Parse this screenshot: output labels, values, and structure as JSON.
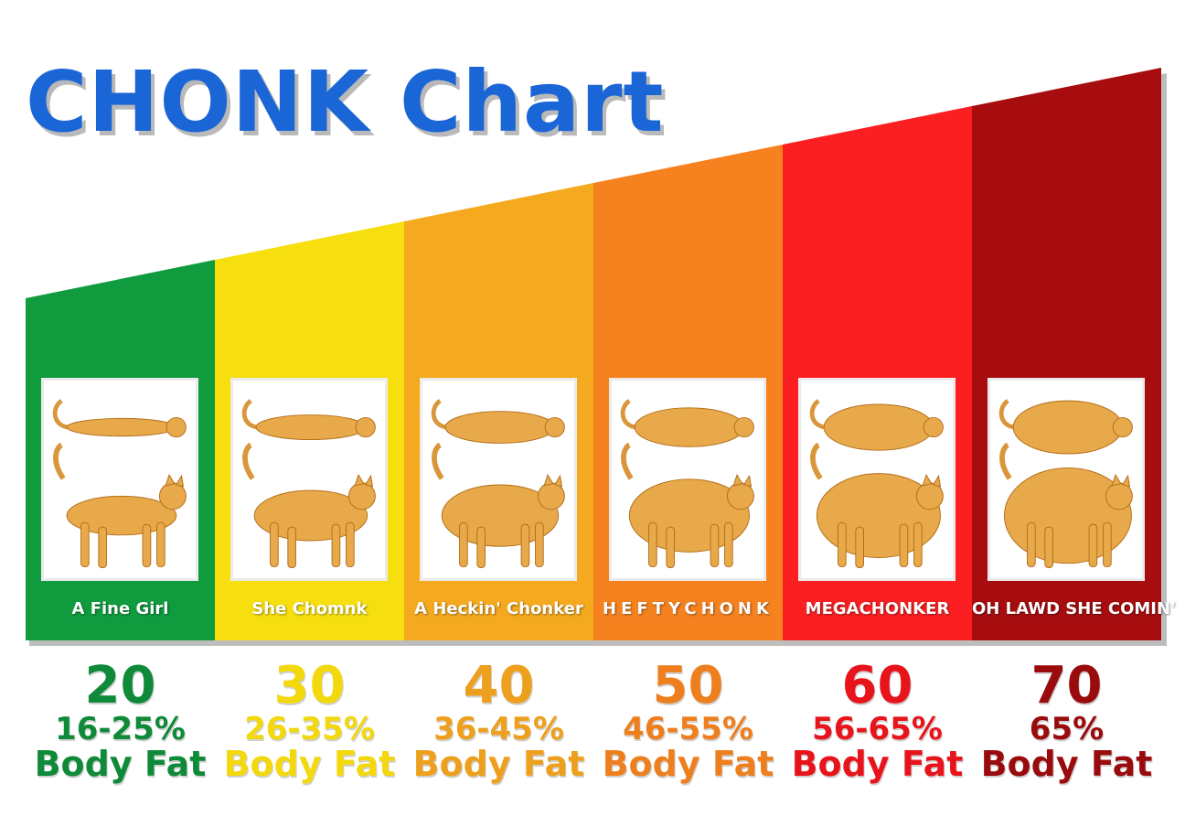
{
  "title": "CHONK Chart",
  "title_color": "#1a66d6",
  "categories": [
    {
      "label": "A Fine Girl",
      "score": "20",
      "range": "16-25%",
      "unit": "Body Fat",
      "color": "#0f9b3e",
      "text_color": "#0f8a38"
    },
    {
      "label": "She Chomnk",
      "score": "30",
      "range": "26-35%",
      "unit": "Body Fat",
      "color": "#f7df0f",
      "text_color": "#f2d80c"
    },
    {
      "label": "A Heckin' Chonker",
      "score": "40",
      "range": "36-45%",
      "unit": "Body Fat",
      "color": "#f5a91f",
      "text_color": "#eda01d"
    },
    {
      "label": "HEFTYCHONK",
      "score": "50",
      "range": "46-55%",
      "unit": "Body Fat",
      "color": "#f5821f",
      "text_color": "#ee7f1e"
    },
    {
      "label": "MEGACHONKER",
      "score": "60",
      "range": "56-65%",
      "unit": "Body Fat",
      "color": "#fb1f22",
      "text_color": "#e8141c"
    },
    {
      "label": "OH LAWD SHE COMIN'",
      "score": "70",
      "range": "65%",
      "unit": "Body Fat",
      "color": "#a70d0f",
      "text_color": "#9a0b0e"
    }
  ],
  "images": [
    "orange-cat-illustration-top-and-side-view"
  ]
}
